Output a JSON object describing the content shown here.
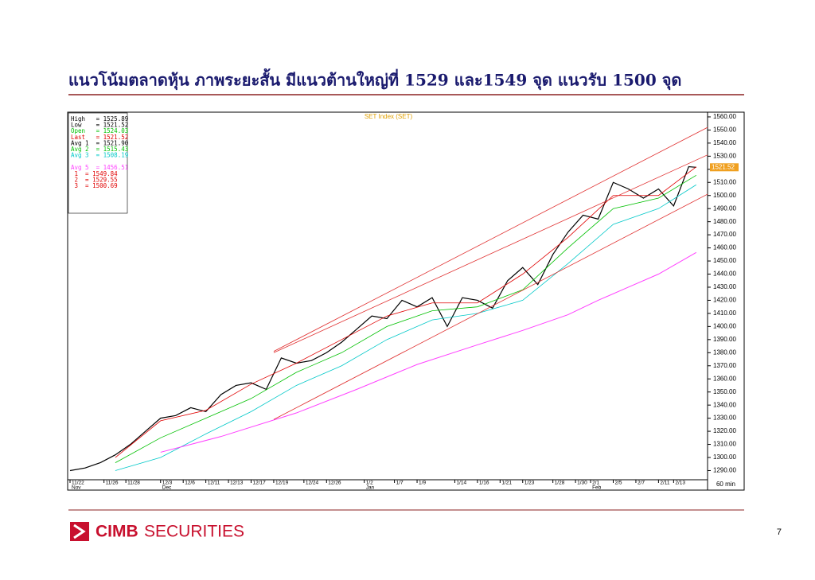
{
  "slide_title": "แนวโน้มตลาดหุ้น ภาพระยะสั้น มีแนวต้านใหญ่ที่ 1529 และ1549 จุด แนวรับ 1500 จุด",
  "chart_data": {
    "type": "line",
    "title": "SET Index (SET)",
    "timeframe": "60 min",
    "info": [
      {
        "text": "High   = 1525.89",
        "color": "#000000"
      },
      {
        "text": "Low    = 1521.52",
        "color": "#000000"
      },
      {
        "text": "Open   = 1524.03",
        "color": "#00c000"
      },
      {
        "text": "Last   = 1521.52",
        "color": "#e00000"
      },
      {
        "text": "Avg 1  = 1521.90",
        "color": "#000000"
      },
      {
        "text": "Avg 2  = 1515.43",
        "color": "#00c000"
      },
      {
        "text": "Avg 3  = 1508.19",
        "color": "#00c8c8"
      },
      {
        "text": "Avg 5  = 1456.51",
        "color": "#ff40ff"
      },
      {
        "text": " 1  = 1549.84",
        "color": "#e00000"
      },
      {
        "text": " 2  = 1529.55",
        "color": "#e00000"
      },
      {
        "text": " 3  = 1500.69",
        "color": "#e00000"
      }
    ],
    "last_label": 1521.52,
    "xlim": [
      0,
      84.5
    ],
    "ylim": [
      1283,
      1563
    ],
    "xticks": [
      {
        "value": 0,
        "label": "11/22"
      },
      {
        "value": 4.5,
        "label": "11/26"
      },
      {
        "value": 7.4,
        "label": "11/28"
      },
      {
        "value": 12,
        "label": "12/3"
      },
      {
        "value": 15,
        "label": "12/6"
      },
      {
        "value": 18,
        "label": "12/11"
      },
      {
        "value": 21,
        "label": "12/13"
      },
      {
        "value": 24,
        "label": "12/17"
      },
      {
        "value": 27,
        "label": "12/19"
      },
      {
        "value": 31,
        "label": "12/24"
      },
      {
        "value": 34,
        "label": "12/26"
      },
      {
        "value": 39,
        "label": "1/2"
      },
      {
        "value": 43,
        "label": "1/7"
      },
      {
        "value": 46,
        "label": "1/9"
      },
      {
        "value": 51,
        "label": "1/14"
      },
      {
        "value": 54,
        "label": "1/16"
      },
      {
        "value": 57,
        "label": "1/21"
      },
      {
        "value": 60,
        "label": "1/23"
      },
      {
        "value": 64,
        "label": "1/28"
      },
      {
        "value": 67,
        "label": "1/30"
      },
      {
        "value": 69,
        "label": "2/1"
      },
      {
        "value": 72,
        "label": "2/5"
      },
      {
        "value": 75,
        "label": "2/7"
      },
      {
        "value": 78,
        "label": "2/11"
      },
      {
        "value": 80,
        "label": "2/13"
      }
    ],
    "months": [
      {
        "value": 0,
        "label": "Nov"
      },
      {
        "value": 12,
        "label": "Dec"
      },
      {
        "value": 39,
        "label": "Jan"
      },
      {
        "value": 69,
        "label": "Feb"
      }
    ],
    "yticks": [
      {
        "value": 1290,
        "label": "1290.00"
      },
      {
        "value": 1300,
        "label": "1300.00"
      },
      {
        "value": 1310,
        "label": "1310.00"
      },
      {
        "value": 1320,
        "label": "1320.00"
      },
      {
        "value": 1330,
        "label": "1330.00"
      },
      {
        "value": 1340,
        "label": "1340.00"
      },
      {
        "value": 1350,
        "label": "1350.00"
      },
      {
        "value": 1360,
        "label": "1360.00"
      },
      {
        "value": 1370,
        "label": "1370.00"
      },
      {
        "value": 1380,
        "label": "1380.00"
      },
      {
        "value": 1390,
        "label": "1390.00"
      },
      {
        "value": 1400,
        "label": "1400.00"
      },
      {
        "value": 1410,
        "label": "1410.00"
      },
      {
        "value": 1420,
        "label": "1420.00"
      },
      {
        "value": 1430,
        "label": "1430.00"
      },
      {
        "value": 1440,
        "label": "1440.00"
      },
      {
        "value": 1450,
        "label": "1450.00"
      },
      {
        "value": 1460,
        "label": "1460.00"
      },
      {
        "value": 1470,
        "label": "1470.00"
      },
      {
        "value": 1480,
        "label": "1480.00"
      },
      {
        "value": 1490,
        "label": "1490.00"
      },
      {
        "value": 1500,
        "label": "1500.00"
      },
      {
        "value": 1510,
        "label": "1510.00"
      },
      {
        "value": 1520,
        "label": "1520.00"
      },
      {
        "value": 1530,
        "label": "1530.00"
      },
      {
        "value": 1540,
        "label": "1540.00"
      },
      {
        "value": 1550,
        "label": "1550.00"
      },
      {
        "value": 1560,
        "label": "1560.00"
      }
    ],
    "series": [
      {
        "color": "#000000",
        "width": 1.2,
        "x": [
          0,
          2,
          4,
          6,
          8,
          10,
          12,
          14,
          16,
          18,
          20,
          22,
          24,
          26,
          28,
          30,
          32,
          34,
          36,
          38,
          40,
          42,
          44,
          46,
          48,
          50,
          52,
          54,
          56,
          58,
          60,
          62,
          64,
          66,
          68,
          70,
          72,
          74,
          76,
          78,
          80,
          82,
          83
        ],
        "values": [
          1290,
          1292,
          1296,
          1302,
          1310,
          1320,
          1330,
          1332,
          1338,
          1335,
          1348,
          1355,
          1357,
          1352,
          1376,
          1372,
          1374,
          1380,
          1388,
          1398,
          1408,
          1406,
          1420,
          1415,
          1422,
          1400,
          1422,
          1420,
          1414,
          1435,
          1445,
          1432,
          1455,
          1472,
          1485,
          1482,
          1510,
          1505,
          1498,
          1505,
          1492,
          1522,
          1521.52
        ]
      },
      {
        "color": "#e00000",
        "width": 0.8,
        "x": [
          6,
          12,
          18,
          24,
          30,
          36,
          42,
          48,
          54,
          60,
          66,
          72,
          78,
          83
        ],
        "values": [
          1300,
          1328,
          1336,
          1356,
          1372,
          1390,
          1408,
          1418,
          1418,
          1440,
          1468,
          1500,
          1500,
          1521.9
        ]
      },
      {
        "color": "#00c000",
        "width": 0.8,
        "x": [
          6,
          12,
          18,
          24,
          30,
          36,
          42,
          48,
          54,
          60,
          66,
          72,
          78,
          83
        ],
        "values": [
          1296,
          1315,
          1330,
          1345,
          1365,
          1380,
          1400,
          1412,
          1415,
          1428,
          1460,
          1490,
          1498,
          1515.43
        ]
      },
      {
        "color": "#00c8c8",
        "width": 0.8,
        "x": [
          6,
          12,
          18,
          24,
          30,
          36,
          42,
          48,
          54,
          60,
          66,
          72,
          78,
          83
        ],
        "values": [
          1290,
          1300,
          1318,
          1335,
          1355,
          1370,
          1390,
          1405,
          1410,
          1420,
          1448,
          1478,
          1490,
          1508.19
        ]
      },
      {
        "color": "#ff40ff",
        "width": 1,
        "x": [
          12,
          20,
          30,
          38,
          46,
          54,
          60,
          66,
          70,
          74,
          78,
          83
        ],
        "values": [
          1304,
          1316,
          1334,
          1352,
          1371,
          1386,
          1397,
          1409,
          1420,
          1430,
          1440,
          1456.51
        ]
      },
      {
        "color": "#e03030",
        "width": 0.8,
        "x": [
          27,
          84.5
        ],
        "values": [
          1381,
          1552
        ]
      },
      {
        "color": "#e03030",
        "width": 0.8,
        "x": [
          27,
          84.5
        ],
        "values": [
          1380,
          1531
        ]
      },
      {
        "color": "#e03030",
        "width": 0.8,
        "x": [
          27,
          84.5
        ],
        "values": [
          1329,
          1501
        ]
      }
    ]
  },
  "footer": {
    "brand_bold": "CIMB",
    "brand_rest": "SECURITIES",
    "page": "7"
  }
}
